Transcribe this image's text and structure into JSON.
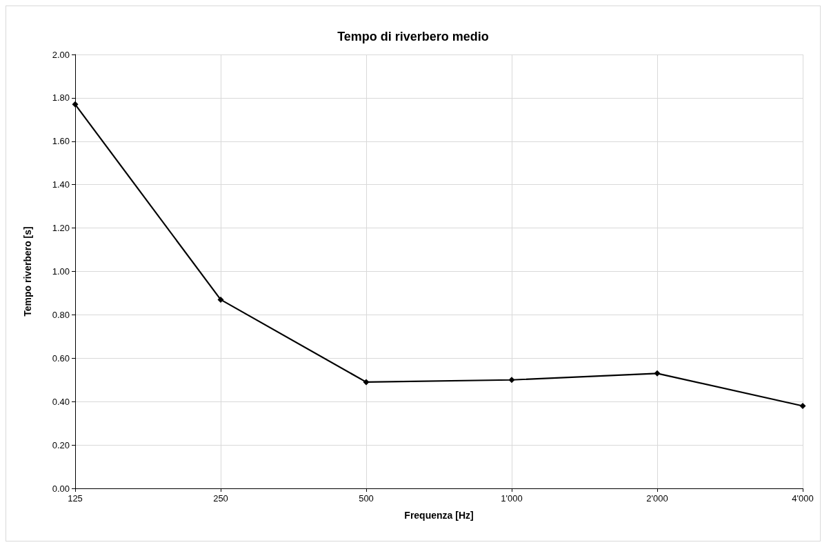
{
  "chart_data": {
    "type": "line",
    "title": "Tempo di riverbero medio",
    "xlabel": "Frequenza [Hz]",
    "ylabel": "Tempo riverbero [s]",
    "categories": [
      "125",
      "250",
      "500",
      "1'000",
      "2'000",
      "4'000"
    ],
    "series": [
      {
        "color": "#000000",
        "values": [
          1.77,
          0.87,
          0.49,
          0.5,
          0.53,
          0.38
        ]
      }
    ],
    "ylim": [
      0,
      2
    ],
    "yticks": [
      {
        "value": 0,
        "label": "0.00"
      },
      {
        "value": 0.2,
        "label": "0.20"
      },
      {
        "value": 0.4,
        "label": "0.40"
      },
      {
        "value": 0.6,
        "label": "0.60"
      },
      {
        "value": 0.8,
        "label": "0.80"
      },
      {
        "value": 1,
        "label": "1.00"
      },
      {
        "value": 1.2,
        "label": "1.20"
      },
      {
        "value": 1.4,
        "label": "1.40"
      },
      {
        "value": 1.6,
        "label": "1.60"
      },
      {
        "value": 1.8,
        "label": "1.80"
      },
      {
        "value": 2,
        "label": "2.00"
      }
    ],
    "grid": true,
    "marker": "diamond",
    "line_style": "solid"
  }
}
